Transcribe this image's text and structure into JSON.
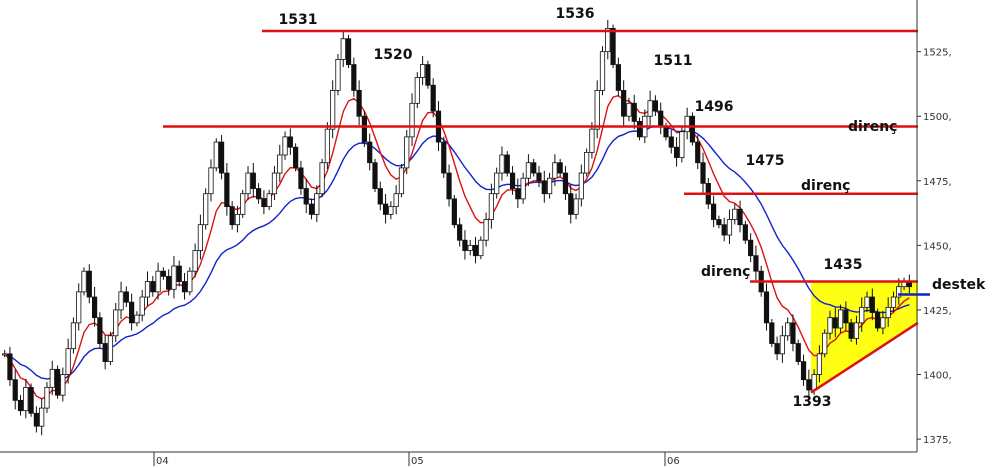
{
  "chart_data": {
    "type": "candlestick",
    "ylim": [
      1370,
      1545
    ],
    "y_ticks": [
      1375,
      1400,
      1425,
      1450,
      1475,
      1500,
      1525
    ],
    "y_tick_labels": [
      "1375,",
      "1400,",
      "1425,",
      "1450,",
      "1475,",
      "1500,",
      "1525,"
    ],
    "x_ticks": [
      "04",
      "05",
      "06"
    ],
    "grid": false,
    "series": [
      {
        "name": "price",
        "color": "#111111",
        "closes": [
          1408,
          1398,
          1390,
          1386,
          1395,
          1385,
          1380,
          1387,
          1395,
          1402,
          1392,
          1400,
          1410,
          1420,
          1432,
          1440,
          1430,
          1422,
          1412,
          1405,
          1415,
          1425,
          1432,
          1428,
          1420,
          1423,
          1430,
          1436,
          1432,
          1440,
          1438,
          1433,
          1442,
          1436,
          1432,
          1440,
          1448,
          1458,
          1470,
          1480,
          1490,
          1478,
          1465,
          1458,
          1462,
          1470,
          1478,
          1472,
          1468,
          1465,
          1470,
          1478,
          1485,
          1492,
          1488,
          1480,
          1472,
          1466,
          1462,
          1470,
          1482,
          1495,
          1510,
          1522,
          1530,
          1520,
          1510,
          1500,
          1490,
          1482,
          1472,
          1466,
          1462,
          1465,
          1470,
          1480,
          1492,
          1505,
          1515,
          1520,
          1512,
          1502,
          1490,
          1478,
          1468,
          1458,
          1452,
          1448,
          1450,
          1446,
          1452,
          1460,
          1470,
          1478,
          1485,
          1478,
          1472,
          1468,
          1476,
          1482,
          1478,
          1475,
          1470,
          1476,
          1482,
          1478,
          1470,
          1462,
          1468,
          1478,
          1486,
          1495,
          1510,
          1525,
          1534,
          1520,
          1510,
          1500,
          1505,
          1498,
          1492,
          1500,
          1506,
          1502,
          1496,
          1492,
          1488,
          1484,
          1494,
          1500,
          1490,
          1482,
          1474,
          1466,
          1460,
          1458,
          1454,
          1460,
          1464,
          1458,
          1452,
          1446,
          1440,
          1432,
          1420,
          1412,
          1408,
          1415,
          1420,
          1412,
          1405,
          1398,
          1394,
          1400,
          1408,
          1416,
          1422,
          1418,
          1425,
          1420,
          1414,
          1420,
          1426,
          1430,
          1424,
          1418,
          1422,
          1426,
          1430,
          1434,
          1436,
          1434
        ]
      },
      {
        "name": "ma-short",
        "color": "#dd1111"
      },
      {
        "name": "ma-long",
        "color": "#1122cc"
      }
    ],
    "horizontal_lines": [
      {
        "y": 1533,
        "color": "#dd1111"
      },
      {
        "y": 1496,
        "color": "#dd1111"
      },
      {
        "y": 1470,
        "color": "#dd1111"
      },
      {
        "y": 1436,
        "color": "#dd1111"
      },
      {
        "y": 1431,
        "color": "#1122cc"
      }
    ],
    "triangle": {
      "apex_y": 1393,
      "upper_y": 1436,
      "lower_end_y": 1420,
      "fill": "#ffff00",
      "stroke": "#dd1111"
    },
    "annotations": [
      {
        "text": "1531",
        "y": 1531
      },
      {
        "text": "1520",
        "y": 1520
      },
      {
        "text": "1536",
        "y": 1536
      },
      {
        "text": "1511",
        "y": 1511
      },
      {
        "text": "1496",
        "y": 1496
      },
      {
        "text": "1475",
        "y": 1475
      },
      {
        "text": "1435",
        "y": 1435
      },
      {
        "text": "1393",
        "y": 1393
      },
      {
        "text": "direnç",
        "y": 1496
      },
      {
        "text": "direnç",
        "y": 1470
      },
      {
        "text": "direnç",
        "y": 1436
      },
      {
        "text": "destek",
        "y": 1431
      }
    ]
  }
}
